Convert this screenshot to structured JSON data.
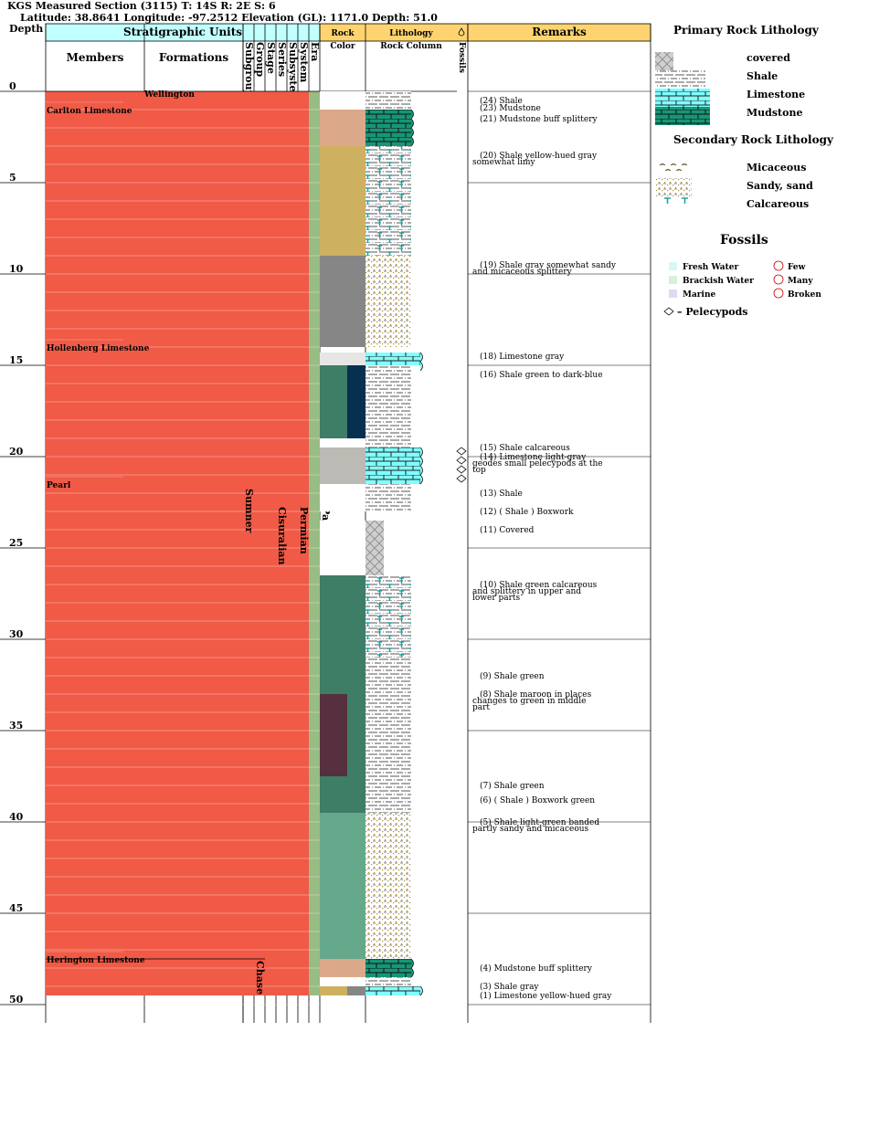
{
  "header": {
    "line1": "KGS Measured Section (3115) T: 14S R: 2E S: 6",
    "line2": "Latitude: 38.8641 Longitude: -97.2512 Elevation (GL): 1171.0 Depth: 51.0"
  },
  "columns": {
    "depth": "Depth",
    "stratigraphic_units": "Stratigraphic Units",
    "members": "Members",
    "formations": "Formations",
    "rotated": [
      "Subgroup",
      "Group",
      "Stage",
      "Series",
      "Subsystem",
      "System",
      "Era"
    ],
    "rock_color": [
      "Rock",
      "Color"
    ],
    "lithology": "Lithology",
    "rock_column": "Rock Column",
    "fossils": "Fossils",
    "remarks": "Remarks"
  },
  "depth_ticks": [
    0,
    5,
    10,
    15,
    20,
    25,
    30,
    35,
    40,
    45,
    50
  ],
  "members": [
    {
      "name": "Carlton Limestone",
      "depth": 1.3
    },
    {
      "name": "Hollenberg Limestone",
      "depth": 14.3
    },
    {
      "name": "Pearl",
      "depth": 21.8
    },
    {
      "name": "Herington Limestone",
      "depth": 47.8
    }
  ],
  "formations": [
    {
      "name": "Wellington",
      "depth": 0.3
    }
  ],
  "units": [
    {
      "name": "Sumner",
      "col": 0,
      "top": 0,
      "bottom": 47.5
    },
    {
      "name": "Chase",
      "col": 1,
      "top": 47.5,
      "bottom": 49.5
    },
    {
      "name": "Cisuralian",
      "col": 3,
      "top": 0,
      "bottom": 49.5
    },
    {
      "name": "Permian",
      "col": 5,
      "top": 0,
      "bottom": 49.5
    },
    {
      "name": "Paleozoic",
      "col": 7,
      "top": 0,
      "bottom": 49.5
    }
  ],
  "beds": [
    {
      "top": 0,
      "bottom": 1,
      "color": "#ffffff",
      "litho": "shale",
      "remark": "(24) Shale",
      "rdepth": 0.3
    },
    {
      "top": 1,
      "bottom": 1,
      "color": "#ffffff",
      "litho": "shale",
      "remark": "(23) Mudstone",
      "rdepth": 0.7
    },
    {
      "top": 1,
      "bottom": 3,
      "color": "#dba98a",
      "litho": "mudstone",
      "remark": "(21) Mudstone buff splittery",
      "rdepth": 1.3
    },
    {
      "top": 3,
      "bottom": 9,
      "color": "#cdb060",
      "litho": "calc_shale",
      "remark": "(20) Shale yellow-hued gray somewhat limy",
      "rdepth": 3.3
    },
    {
      "top": 9,
      "bottom": 14,
      "color": "#868686",
      "litho": "sandy_shale",
      "remark": "(19) Shale gray somewhat sandy and micaceous splittery",
      "rdepth": 9.3
    },
    {
      "top": 14.3,
      "bottom": 15,
      "color": "#e6e6e6",
      "litho": "limestone",
      "remark": "(18) Limestone gray",
      "rdepth": 14.3
    },
    {
      "top": 15,
      "bottom": 19,
      "color": "#3e7d66",
      "color2": "#063050",
      "litho": "shale",
      "remark": "(16) Shale green to dark-blue",
      "rdepth": 15.3
    },
    {
      "top": 19,
      "bottom": 19.5,
      "color": "#ffffff",
      "litho": "shale",
      "remark": "(15) Shale calcareous",
      "rdepth": 19.3
    },
    {
      "top": 19.5,
      "bottom": 21.5,
      "color": "#bcbab4",
      "litho": "limestone",
      "remark": "(14) Limestone light-gray geodes small pelecypods at the top",
      "rdepth": 19.8
    },
    {
      "top": 21.5,
      "bottom": 23,
      "color": "#ffffff",
      "litho": "shale",
      "remark": "(13) Shale",
      "rdepth": 21.8
    },
    {
      "top": 23,
      "bottom": 23,
      "color": "#ffffff",
      "litho": "shale",
      "remark": "(12) ( Shale ) Boxwork",
      "rdepth": 22.8
    },
    {
      "top": 23.5,
      "bottom": 26.5,
      "color": "#ffffff",
      "litho": "covered",
      "remark": "(11) Covered",
      "rdepth": 23.8
    },
    {
      "top": 26.5,
      "bottom": 31,
      "color": "#3e7d66",
      "litho": "calc_shale",
      "remark": "(10) Shale green calcareous and splittery in upper and lower parts",
      "rdepth": 26.8
    },
    {
      "top": 31,
      "bottom": 32,
      "color": "#3e7d66",
      "litho": "shale",
      "remark": "(9) Shale green",
      "rdepth": 31.8
    },
    {
      "top": 32,
      "bottom": 37.5,
      "color": "#3e7d66",
      "color2": "#56303e",
      "litho": "shale",
      "remark": "(8) Shale maroon in places changes to green in middle part",
      "rdepth": 32.8
    },
    {
      "top": 37.5,
      "bottom": 38.5,
      "color": "#3e7d66",
      "litho": "shale",
      "remark": "(7) Shale green",
      "rdepth": 37.8
    },
    {
      "top": 38.5,
      "bottom": 39.5,
      "color": "#3e7d66",
      "litho": "shale",
      "remark": "(6) ( Shale ) Boxwork green",
      "rdepth": 38.6
    },
    {
      "top": 39.5,
      "bottom": 47.5,
      "color": "#66a88c",
      "litho": "sandy_shale",
      "remark": "(5) Shale light-green banded partly sandy and micaceous",
      "rdepth": 39.8
    },
    {
      "top": 47.5,
      "bottom": 48.5,
      "color": "#dba98a",
      "litho": "mudstone",
      "remark": "(4) Mudstone buff splittery",
      "rdepth": 47.8
    },
    {
      "top": 48.5,
      "bottom": 49,
      "color": "#ffffff",
      "litho": "shale",
      "remark": "(3) Shale gray",
      "rdepth": 48.8
    },
    {
      "top": 49,
      "bottom": 49.5,
      "color": "#cdb060",
      "color2": "#868686",
      "litho": "limestone",
      "remark": "(1) Limestone yellow-hued gray",
      "rdepth": 49.3
    }
  ],
  "fossil_marks": [
    19.5,
    20,
    20.5,
    21
  ],
  "legend": {
    "primary_title": "Primary Rock Lithology",
    "primary": [
      {
        "label": "covered",
        "key": "covered"
      },
      {
        "label": "Shale",
        "key": "shale"
      },
      {
        "label": "Limestone",
        "key": "limestone"
      },
      {
        "label": "Mudstone",
        "key": "mudstone"
      }
    ],
    "secondary_title": "Secondary Rock Lithology",
    "secondary": [
      {
        "label": "Micaceous",
        "key": "micaceous"
      },
      {
        "label": "Sandy, sand",
        "key": "sandy"
      },
      {
        "label": "Calcareous",
        "key": "calcareous"
      }
    ],
    "fossils_title": "Fossils",
    "fossil_env": [
      {
        "label": "Fresh Water",
        "color": "#d8f7f7"
      },
      {
        "label": "Brackish Water",
        "color": "#d8f0d8"
      },
      {
        "label": "Marine",
        "color": "#dcdcf0"
      }
    ],
    "fossil_abund": [
      {
        "label": "Few",
        "key": "few"
      },
      {
        "label": "Many",
        "key": "many"
      },
      {
        "label": "Broken",
        "key": "broken"
      }
    ],
    "pelecypods": "Pelecypods"
  },
  "colors": {
    "unit_red": "#f05a46",
    "era_green": "#99bb84",
    "strat_header": "#c2ffff",
    "lith_header": "#ffd470",
    "limestone": "#80ffff",
    "mudstone": "#169677"
  }
}
